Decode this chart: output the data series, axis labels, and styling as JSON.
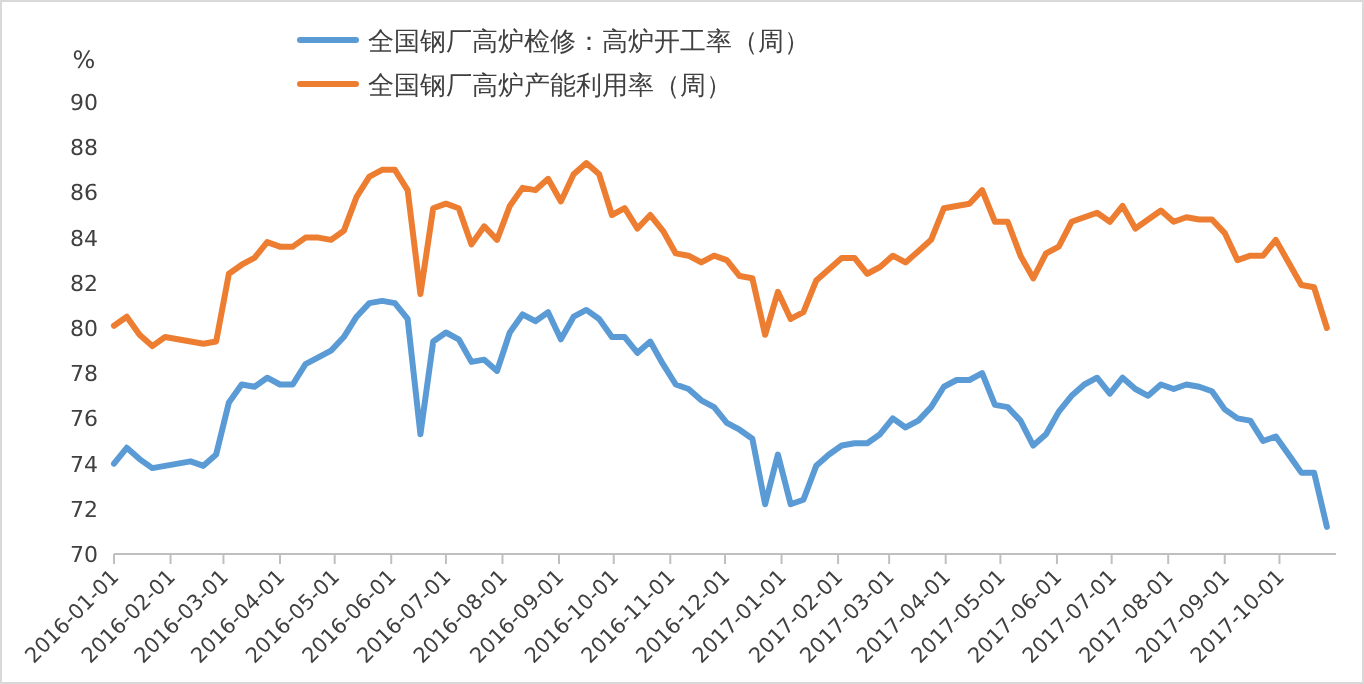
{
  "chart_data": {
    "type": "line",
    "ylabel": "%",
    "legend": "top",
    "marker": "none",
    "line_style": "solid",
    "x": [
      "2016-01-01",
      "2016-01-08",
      "2016-01-15",
      "2016-01-22",
      "2016-01-29",
      "2016-02-05",
      "2016-02-12",
      "2016-02-19",
      "2016-02-26",
      "2016-03-04",
      "2016-03-11",
      "2016-03-18",
      "2016-03-25",
      "2016-04-01",
      "2016-04-08",
      "2016-04-15",
      "2016-04-22",
      "2016-04-29",
      "2016-05-06",
      "2016-05-13",
      "2016-05-20",
      "2016-05-27",
      "2016-06-03",
      "2016-06-10",
      "2016-06-17",
      "2016-06-24",
      "2016-07-01",
      "2016-07-08",
      "2016-07-15",
      "2016-07-22",
      "2016-07-29",
      "2016-08-05",
      "2016-08-12",
      "2016-08-19",
      "2016-08-26",
      "2016-09-02",
      "2016-09-09",
      "2016-09-16",
      "2016-09-23",
      "2016-09-30",
      "2016-10-07",
      "2016-10-14",
      "2016-10-21",
      "2016-10-28",
      "2016-11-04",
      "2016-11-11",
      "2016-11-18",
      "2016-11-25",
      "2016-12-02",
      "2016-12-09",
      "2016-12-16",
      "2016-12-23",
      "2016-12-30",
      "2017-01-06",
      "2017-01-13",
      "2017-01-20",
      "2017-01-27",
      "2017-02-03",
      "2017-02-10",
      "2017-02-17",
      "2017-02-24",
      "2017-03-03",
      "2017-03-10",
      "2017-03-17",
      "2017-03-24",
      "2017-03-31",
      "2017-04-07",
      "2017-04-14",
      "2017-04-21",
      "2017-04-28",
      "2017-05-05",
      "2017-05-12",
      "2017-05-19",
      "2017-05-26",
      "2017-06-02",
      "2017-06-09",
      "2017-06-16",
      "2017-06-23",
      "2017-06-30",
      "2017-07-07",
      "2017-07-14",
      "2017-07-21",
      "2017-07-28",
      "2017-08-04",
      "2017-08-11",
      "2017-08-18",
      "2017-08-25",
      "2017-09-01",
      "2017-09-08",
      "2017-09-15",
      "2017-09-22",
      "2017-09-29",
      "2017-10-06",
      "2017-10-13",
      "2017-10-20",
      "2017-10-27"
    ],
    "series": [
      {
        "name": "全国钢厂高炉检修：高炉开工率（周）",
        "color": "#5b9bd5",
        "values": [
          74.0,
          74.7,
          74.2,
          73.8,
          73.9,
          74.0,
          74.1,
          73.9,
          74.4,
          76.7,
          77.5,
          77.4,
          77.8,
          77.5,
          77.5,
          78.4,
          78.7,
          79.0,
          79.6,
          80.5,
          81.1,
          81.2,
          81.1,
          80.4,
          75.3,
          79.4,
          79.8,
          79.5,
          78.5,
          78.6,
          78.1,
          79.8,
          80.6,
          80.3,
          80.7,
          79.5,
          80.5,
          80.8,
          80.4,
          79.6,
          79.6,
          78.9,
          79.4,
          78.4,
          77.5,
          77.3,
          76.8,
          76.5,
          75.8,
          75.5,
          75.1,
          72.2,
          74.4,
          72.2,
          72.4,
          73.9,
          74.4,
          74.8,
          74.9,
          74.9,
          75.3,
          76.0,
          75.6,
          75.9,
          76.5,
          77.4,
          77.7,
          77.7,
          78.0,
          76.6,
          76.5,
          75.9,
          74.8,
          75.3,
          76.3,
          77.0,
          77.5,
          77.8,
          77.1,
          77.8,
          77.3,
          77.0,
          77.5,
          77.3,
          77.5,
          77.4,
          77.2,
          76.4,
          76.0,
          75.9,
          75.0,
          75.2,
          74.4,
          73.6,
          73.6,
          71.2
        ]
      },
      {
        "name": "全国钢厂高炉产能利用率（周）",
        "color": "#ed7d31",
        "values": [
          80.1,
          80.5,
          79.7,
          79.2,
          79.6,
          79.5,
          79.4,
          79.3,
          79.4,
          82.4,
          82.8,
          83.1,
          83.8,
          83.6,
          83.6,
          84.0,
          84.0,
          83.9,
          84.3,
          85.8,
          86.7,
          87.0,
          87.0,
          86.1,
          81.5,
          85.3,
          85.5,
          85.3,
          83.7,
          84.5,
          83.9,
          85.4,
          86.2,
          86.1,
          86.6,
          85.6,
          86.8,
          87.3,
          86.8,
          85.0,
          85.3,
          84.4,
          85.0,
          84.3,
          83.3,
          83.2,
          82.9,
          83.2,
          83.0,
          82.3,
          82.2,
          79.7,
          81.6,
          80.4,
          80.7,
          82.1,
          82.6,
          83.1,
          83.1,
          82.4,
          82.7,
          83.2,
          82.9,
          83.4,
          83.9,
          85.3,
          85.4,
          85.5,
          86.1,
          84.7,
          84.7,
          83.2,
          82.2,
          83.3,
          83.6,
          84.7,
          84.9,
          85.1,
          84.7,
          85.4,
          84.4,
          84.8,
          85.2,
          84.7,
          84.9,
          84.8,
          84.8,
          84.2,
          83.0,
          83.2,
          83.2,
          83.9,
          82.9,
          81.9,
          81.8,
          80.0
        ]
      }
    ],
    "xlim": [
      "2016-01-01",
      "2017-11-01"
    ],
    "xticks": [
      "2016-01-01",
      "2016-02-01",
      "2016-03-01",
      "2016-04-01",
      "2016-05-01",
      "2016-06-01",
      "2016-07-01",
      "2016-08-01",
      "2016-09-01",
      "2016-10-01",
      "2016-11-01",
      "2016-12-01",
      "2017-01-01",
      "2017-02-01",
      "2017-03-01",
      "2017-04-01",
      "2017-05-01",
      "2017-06-01",
      "2017-07-01",
      "2017-08-01",
      "2017-09-01",
      "2017-10-01"
    ],
    "ylim": [
      70,
      90
    ],
    "yticks": [
      70,
      72,
      74,
      76,
      78,
      80,
      82,
      84,
      86,
      88,
      90
    ],
    "grid": false
  }
}
